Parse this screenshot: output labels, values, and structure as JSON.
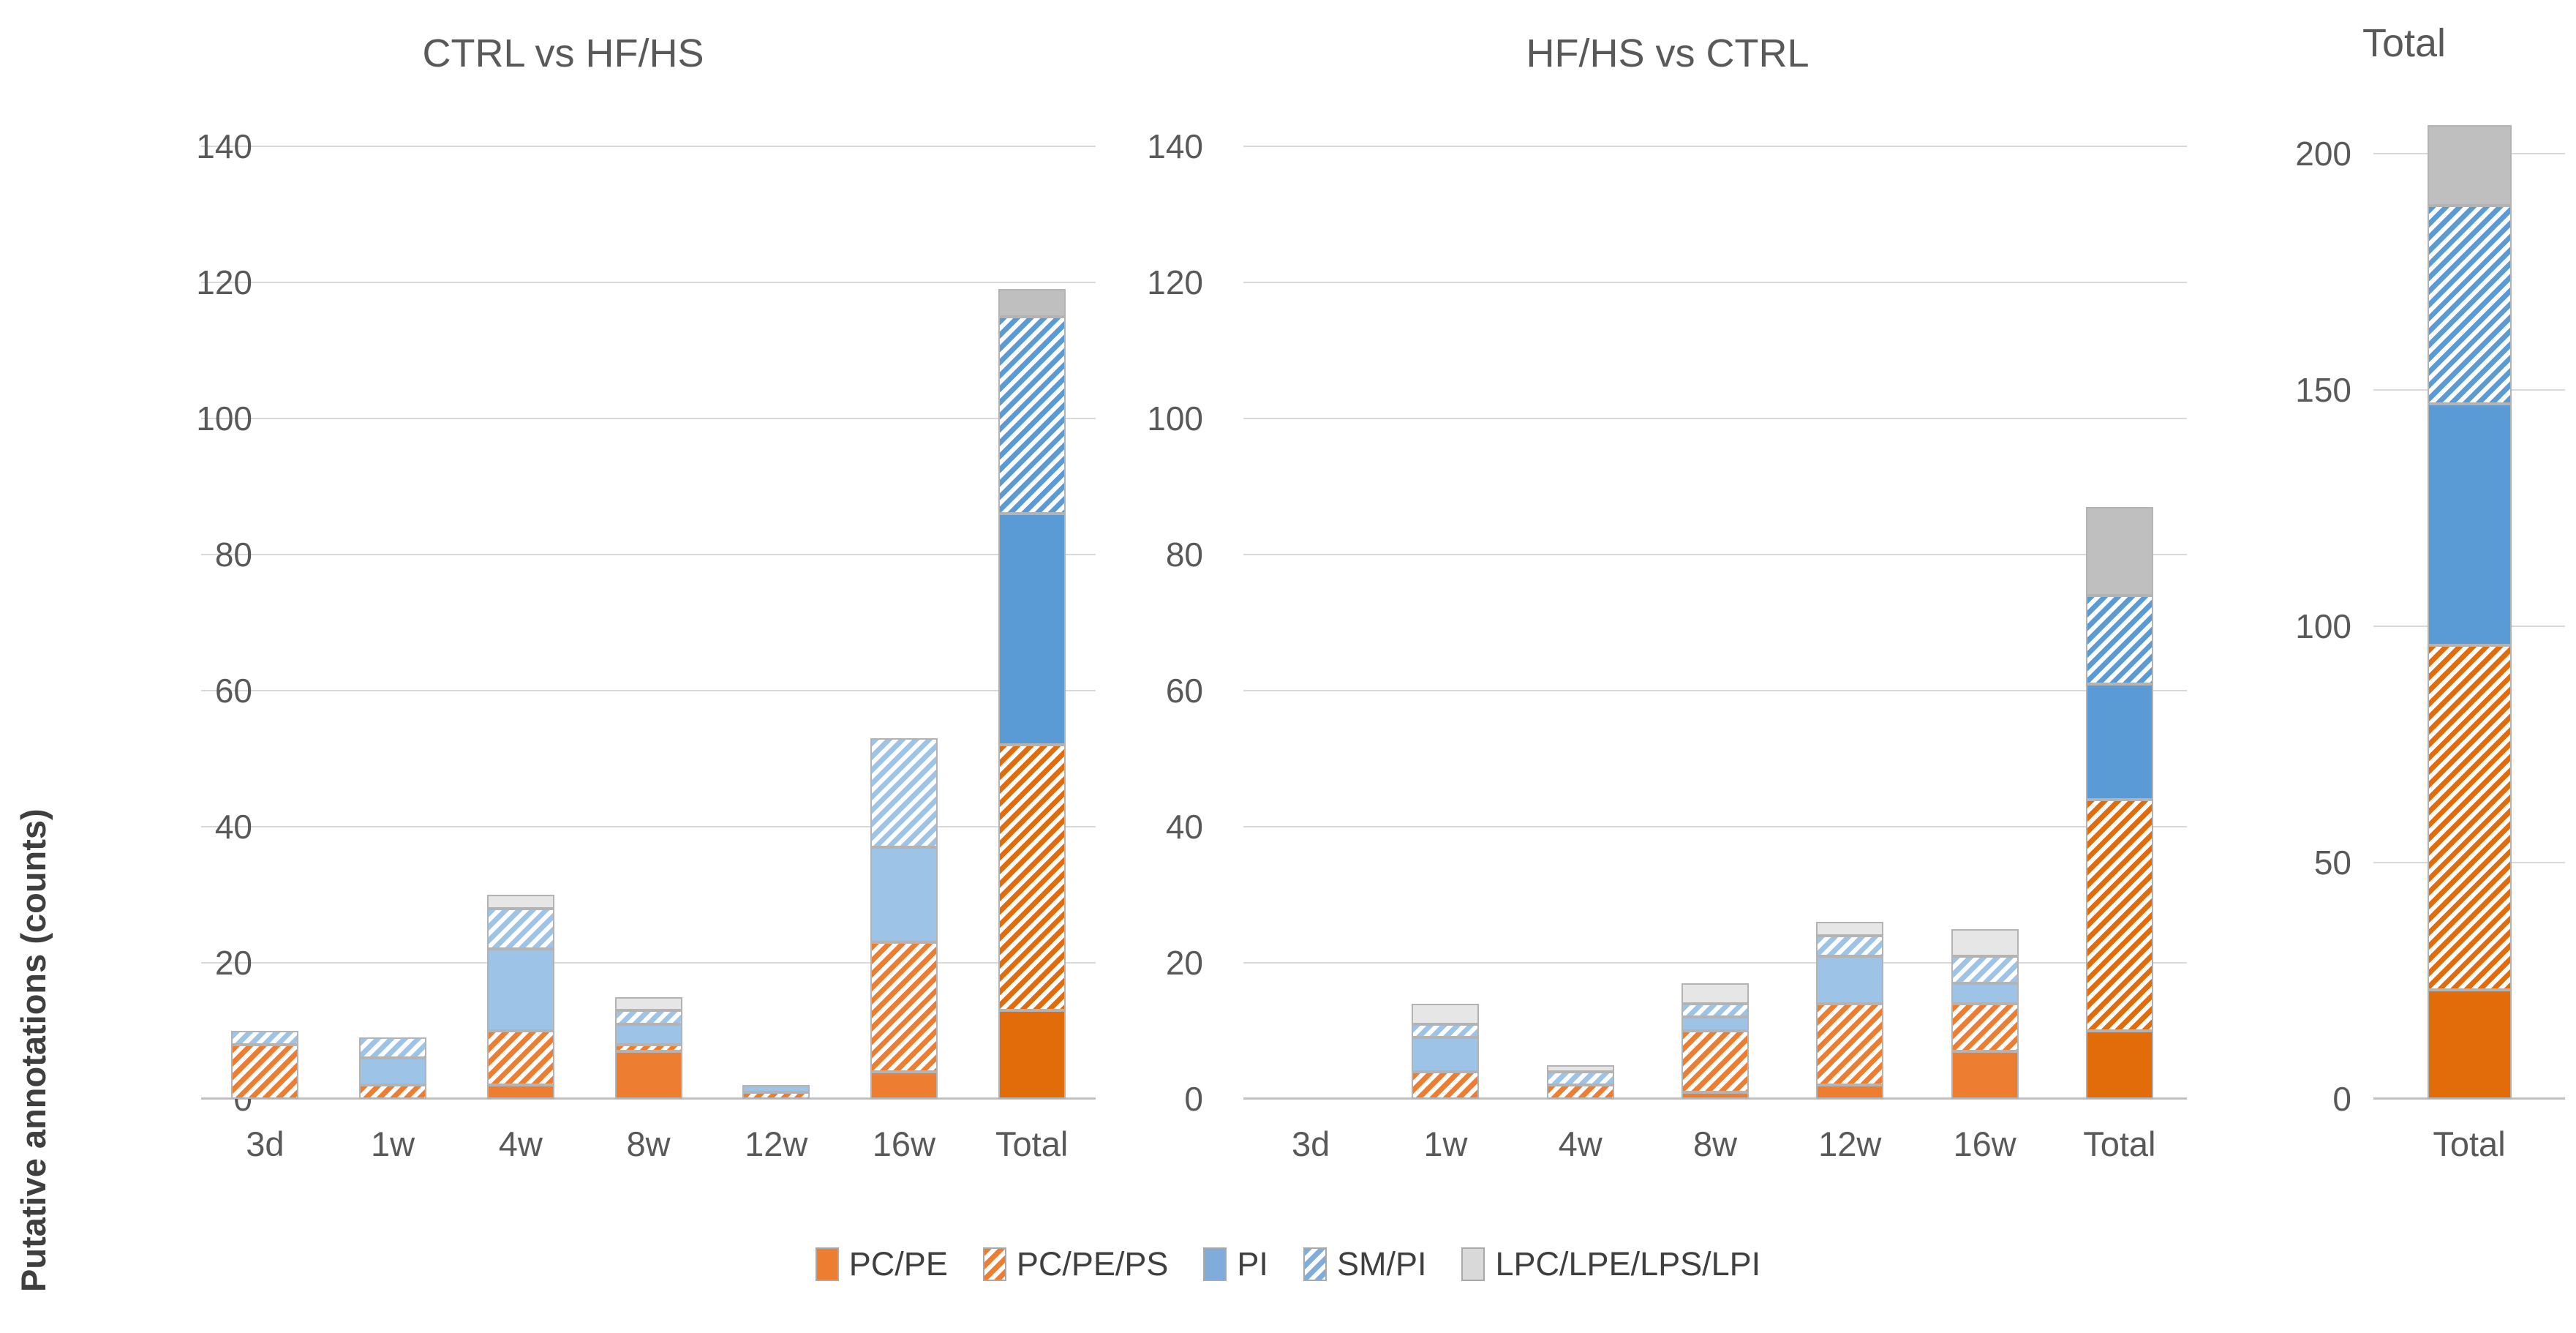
{
  "figure": {
    "y_axis_title": "Putative annotations (counts)"
  },
  "colors": {
    "orange": "#ED7D31",
    "orange_total": "#E36C0A",
    "blue_light": "#9DC3E6",
    "blue_total": "#5B9BD5",
    "blue_legend": "#7FACDB",
    "gray_light": "#E7E6E6",
    "gray_total": "#BFBFBF",
    "gray_legend": "#D9D9D9",
    "gridline": "#D9D9D9",
    "text": "#595959",
    "segment_border": "#B3B3B3",
    "hatch_background": "#FFFFFF"
  },
  "legend": {
    "items": [
      {
        "label": "PC/PE",
        "pattern": "solid",
        "color": "orange"
      },
      {
        "label": "PC/PE/PS",
        "pattern": "hatch",
        "color": "orange"
      },
      {
        "label": "PI",
        "pattern": "solid",
        "color": "blue"
      },
      {
        "label": "SM/PI",
        "pattern": "hatch",
        "color": "blue"
      },
      {
        "label": "LPC/LPE/LPS/LPI",
        "pattern": "solid",
        "color": "gray"
      }
    ]
  },
  "chart_data": [
    {
      "type": "bar",
      "stacked": true,
      "title": "CTRL vs HF/HS",
      "xlabel": "",
      "ylabel": "Putative annotations (counts)",
      "ylim": [
        0,
        140
      ],
      "ytick_step": 20,
      "ytick_labels": [
        "0",
        "20",
        "40",
        "60",
        "80",
        "100",
        "120",
        "140"
      ],
      "grid": true,
      "categories": [
        "3d",
        "1w",
        "4w",
        "8w",
        "12w",
        "16w",
        "Total"
      ],
      "series": [
        {
          "name": "PC/PE",
          "pattern": "solid",
          "color": "orange",
          "values": [
            0,
            0,
            2,
            7,
            0,
            4,
            13
          ]
        },
        {
          "name": "PC/PE/PS",
          "pattern": "hatch",
          "color": "orange",
          "values": [
            8,
            2,
            8,
            1,
            1,
            19,
            39
          ]
        },
        {
          "name": "PI",
          "pattern": "solid",
          "color": "blue",
          "values": [
            0,
            4,
            12,
            3,
            1,
            14,
            34
          ]
        },
        {
          "name": "SM/PI",
          "pattern": "hatch",
          "color": "blue",
          "values": [
            2,
            3,
            6,
            2,
            0,
            16,
            29
          ]
        },
        {
          "name": "LPC/LPE/LPS/LPI",
          "pattern": "solid",
          "color": "gray",
          "values": [
            0,
            0,
            2,
            2,
            0,
            0,
            4
          ]
        }
      ],
      "column_totals": [
        10,
        9,
        30,
        15,
        2,
        53,
        119
      ]
    },
    {
      "type": "bar",
      "stacked": true,
      "title": "HF/HS vs CTRL",
      "xlabel": "",
      "ylabel": "",
      "ylim": [
        0,
        140
      ],
      "ytick_step": 20,
      "ytick_labels": [
        "0",
        "20",
        "40",
        "60",
        "80",
        "100",
        "120",
        "140"
      ],
      "grid": true,
      "categories": [
        "3d",
        "1w",
        "4w",
        "8w",
        "12w",
        "16w",
        "Total"
      ],
      "series": [
        {
          "name": "PC/PE",
          "pattern": "solid",
          "color": "orange",
          "values": [
            0,
            0,
            0,
            1,
            2,
            7,
            10
          ]
        },
        {
          "name": "PC/PE/PS",
          "pattern": "hatch",
          "color": "orange",
          "values": [
            0,
            4,
            2,
            9,
            12,
            7,
            34
          ]
        },
        {
          "name": "PI",
          "pattern": "solid",
          "color": "blue",
          "values": [
            0,
            5,
            0,
            2,
            7,
            3,
            17
          ]
        },
        {
          "name": "SM/PI",
          "pattern": "hatch",
          "color": "blue",
          "values": [
            0,
            2,
            2,
            2,
            3,
            4,
            13
          ]
        },
        {
          "name": "LPC/LPE/LPS/LPI",
          "pattern": "solid",
          "color": "gray",
          "values": [
            0,
            3,
            1,
            3,
            2,
            4,
            13
          ]
        }
      ],
      "column_totals": [
        0,
        14,
        5,
        17,
        26,
        25,
        87
      ]
    },
    {
      "type": "bar",
      "stacked": true,
      "title": "Total",
      "xlabel": "",
      "ylabel": "",
      "ylim": [
        0,
        200
      ],
      "ytick_step": 50,
      "ytick_labels": [
        "0",
        "50",
        "100",
        "150",
        "200"
      ],
      "grid": true,
      "categories": [
        "Total"
      ],
      "series": [
        {
          "name": "PC/PE",
          "pattern": "solid",
          "color": "orange",
          "values": [
            23
          ]
        },
        {
          "name": "PC/PE/PS",
          "pattern": "hatch",
          "color": "orange",
          "values": [
            73
          ]
        },
        {
          "name": "PI",
          "pattern": "solid",
          "color": "blue",
          "values": [
            51
          ]
        },
        {
          "name": "SM/PI",
          "pattern": "hatch",
          "color": "blue",
          "values": [
            42
          ]
        },
        {
          "name": "LPC/LPE/LPS/LPI",
          "pattern": "solid",
          "color": "gray",
          "values": [
            17
          ]
        }
      ],
      "column_totals": [
        206
      ]
    }
  ]
}
